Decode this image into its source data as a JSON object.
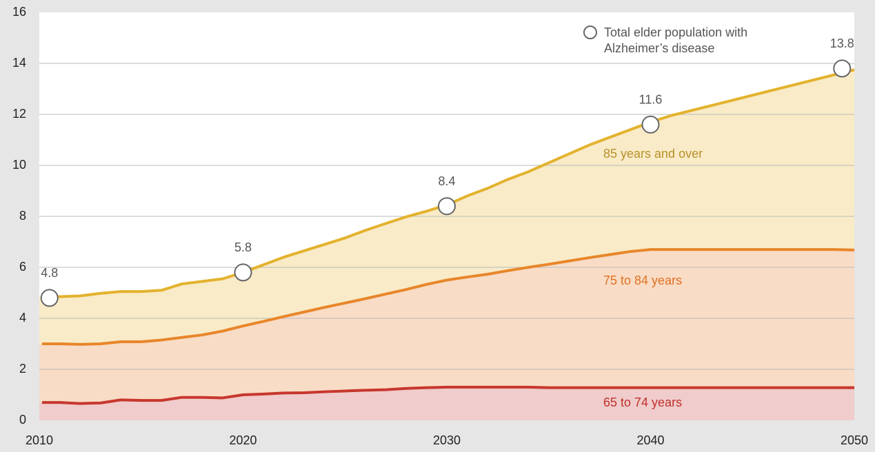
{
  "chart_data": {
    "type": "stacked-area",
    "xlim": [
      2010,
      2050
    ],
    "xticks": [
      2010,
      2020,
      2030,
      2040,
      2050
    ],
    "ylim": [
      0,
      16
    ],
    "yticks": [
      0,
      2,
      4,
      6,
      8,
      10,
      12,
      14,
      16
    ],
    "grid": true,
    "x": [
      2010,
      2011,
      2012,
      2013,
      2014,
      2015,
      2016,
      2017,
      2018,
      2019,
      2020,
      2021,
      2022,
      2023,
      2024,
      2025,
      2026,
      2027,
      2028,
      2029,
      2030,
      2031,
      2032,
      2033,
      2034,
      2035,
      2036,
      2037,
      2038,
      2039,
      2040,
      2041,
      2042,
      2043,
      2044,
      2045,
      2046,
      2047,
      2048,
      2049,
      2050
    ],
    "series": [
      {
        "name": "65 to 74 years",
        "color": "#c8372d",
        "fill": "#f0cccc",
        "label_color": "#c0302a",
        "values": [
          0.7,
          0.7,
          0.66,
          0.68,
          0.8,
          0.78,
          0.78,
          0.9,
          0.9,
          0.88,
          1.0,
          1.03,
          1.07,
          1.08,
          1.12,
          1.15,
          1.18,
          1.2,
          1.25,
          1.28,
          1.3,
          1.3,
          1.3,
          1.3,
          1.3,
          1.28,
          1.28,
          1.28,
          1.28,
          1.28,
          1.28,
          1.28,
          1.28,
          1.28,
          1.28,
          1.28,
          1.28,
          1.28,
          1.28,
          1.28,
          1.28
        ]
      },
      {
        "name": "75 to 84 years",
        "color": "#e8862a",
        "fill": "#f8dcc6",
        "label_color": "#e07020",
        "values": [
          2.3,
          2.3,
          2.32,
          2.32,
          2.28,
          2.3,
          2.37,
          2.35,
          2.45,
          2.62,
          2.7,
          2.85,
          3.0,
          3.17,
          3.31,
          3.45,
          3.59,
          3.75,
          3.88,
          4.05,
          4.2,
          4.32,
          4.43,
          4.57,
          4.7,
          4.84,
          4.97,
          5.1,
          5.22,
          5.34,
          5.42,
          5.42,
          5.42,
          5.42,
          5.42,
          5.42,
          5.42,
          5.42,
          5.42,
          5.42,
          5.4
        ]
      },
      {
        "name": "85 years and over",
        "color": "#e3b22e",
        "fill": "#f9ebc8",
        "label_color": "#b8902a",
        "values": [
          1.85,
          1.85,
          1.9,
          1.98,
          1.97,
          1.97,
          1.95,
          2.1,
          2.1,
          2.05,
          2.1,
          2.22,
          2.33,
          2.4,
          2.47,
          2.55,
          2.68,
          2.77,
          2.85,
          2.87,
          2.95,
          3.18,
          3.37,
          3.58,
          3.75,
          3.98,
          4.2,
          4.42,
          4.6,
          4.78,
          5.0,
          5.25,
          5.45,
          5.65,
          5.85,
          6.05,
          6.25,
          6.45,
          6.65,
          6.85,
          7.07
        ]
      }
    ],
    "total": {
      "name": "Total elder population with Alzheimer’s disease",
      "x": [
        2010.5,
        2020,
        2030,
        2040,
        2049.4
      ],
      "values": [
        4.8,
        5.8,
        8.4,
        11.6,
        13.8
      ]
    }
  }
}
